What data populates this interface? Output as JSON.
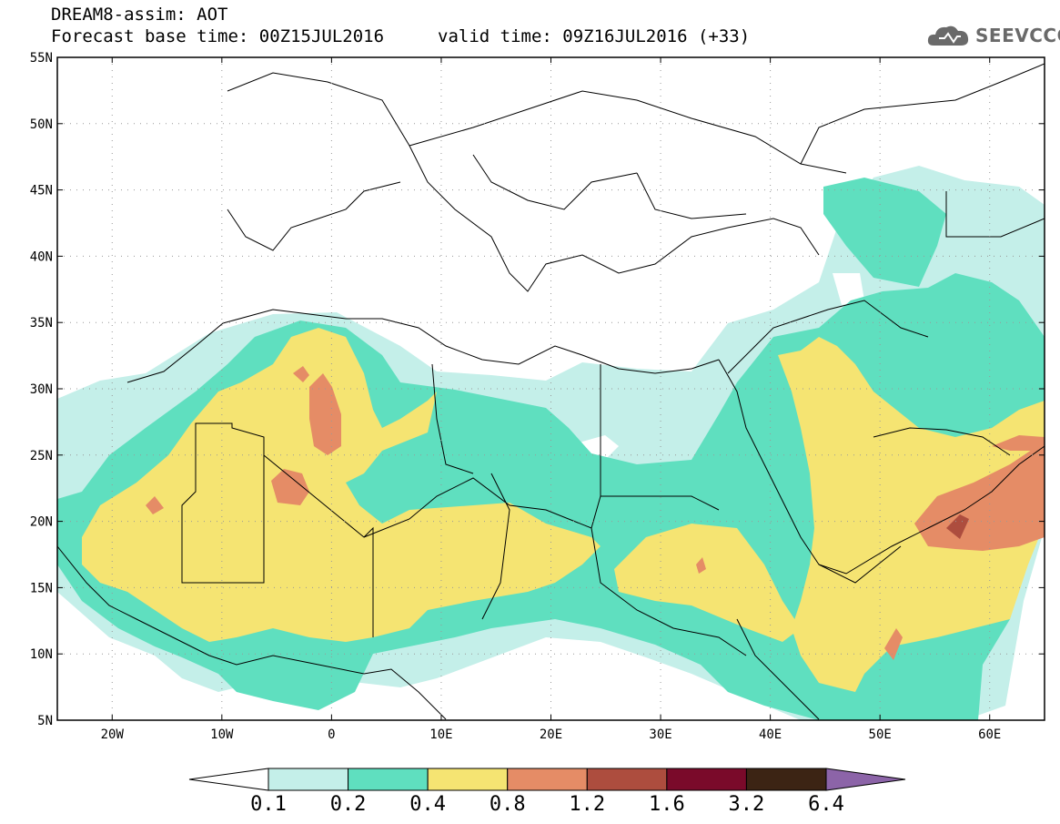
{
  "header": {
    "title": "DREAM8-assim: AOT",
    "forecast_base": "Forecast base time: 00Z15JUL2016",
    "valid_time": "valid time: 09Z16JUL2016 (+33)"
  },
  "logo": {
    "icon": "cloud-icon",
    "text": "SEEVCCC"
  },
  "map": {
    "lon_range": [
      -25,
      65
    ],
    "lat_range": [
      5,
      55
    ],
    "lat_ticks": [
      {
        "value": 55,
        "label": "55N"
      },
      {
        "value": 50,
        "label": "50N"
      },
      {
        "value": 45,
        "label": "45N"
      },
      {
        "value": 40,
        "label": "40N"
      },
      {
        "value": 35,
        "label": "35N"
      },
      {
        "value": 30,
        "label": "30N"
      },
      {
        "value": 25,
        "label": "25N"
      },
      {
        "value": 20,
        "label": "20N"
      },
      {
        "value": 15,
        "label": "15N"
      },
      {
        "value": 10,
        "label": "10N"
      },
      {
        "value": 5,
        "label": "5N"
      }
    ],
    "lon_ticks": [
      {
        "value": -20,
        "label": "20W"
      },
      {
        "value": -10,
        "label": "10W"
      },
      {
        "value": 0,
        "label": "0"
      },
      {
        "value": 10,
        "label": "10E"
      },
      {
        "value": 20,
        "label": "20E"
      },
      {
        "value": 30,
        "label": "30E"
      },
      {
        "value": 40,
        "label": "40E"
      },
      {
        "value": 50,
        "label": "50E"
      },
      {
        "value": 60,
        "label": "60E"
      }
    ]
  },
  "colorbar": {
    "colors": [
      "#ffffff",
      "#c4efe9",
      "#5fdfbf",
      "#f5e472",
      "#e58c66",
      "#ad4d3e",
      "#7a0a2a",
      "#3c2414",
      "#8c64a8"
    ],
    "labels": [
      "0.1",
      "0.2",
      "0.4",
      "0.8",
      "1.2",
      "1.6",
      "3.2",
      "6.4"
    ]
  },
  "colors": {
    "aot_01_02": "#c4efe9",
    "aot_02_04": "#5fdfbf",
    "aot_04_08": "#f5e472",
    "aot_08_12": "#e58c66",
    "aot_12_16": "#ad4d3e",
    "border": "#000000",
    "grid": "#999999"
  }
}
